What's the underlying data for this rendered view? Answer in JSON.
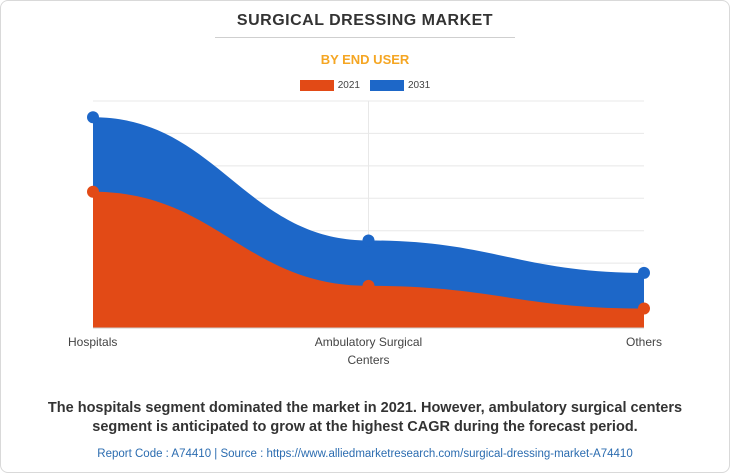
{
  "title": "SURGICAL DRESSING MARKET",
  "subtitle": "BY END USER",
  "caption": {
    "line1": "The hospitals segment dominated the market in 2021. However, ambulatory surgical centers",
    "line2": "segment is anticipated to grow at the highest CAGR during the forecast period."
  },
  "footer": "Report Code : A74410  |  Source : https://www.alliedmarketresearch.com/surgical-dressing-market-A74410",
  "colors": {
    "2021": "#e24a16",
    "2031": "#1d67c8",
    "title": "#333333",
    "subtitle": "#f5a623"
  },
  "chart_data": {
    "type": "area",
    "categories": [
      "Hospitals",
      "Ambulatory Surgical Centers",
      "Others"
    ],
    "series": [
      {
        "name": "2021",
        "values": [
          4.2,
          1.3,
          0.6
        ]
      },
      {
        "name": "2031",
        "values": [
          6.5,
          2.7,
          1.7
        ]
      }
    ],
    "ylim": [
      0,
      7
    ],
    "grid": true,
    "legend": "top-center",
    "xlabel": "",
    "ylabel": ""
  }
}
